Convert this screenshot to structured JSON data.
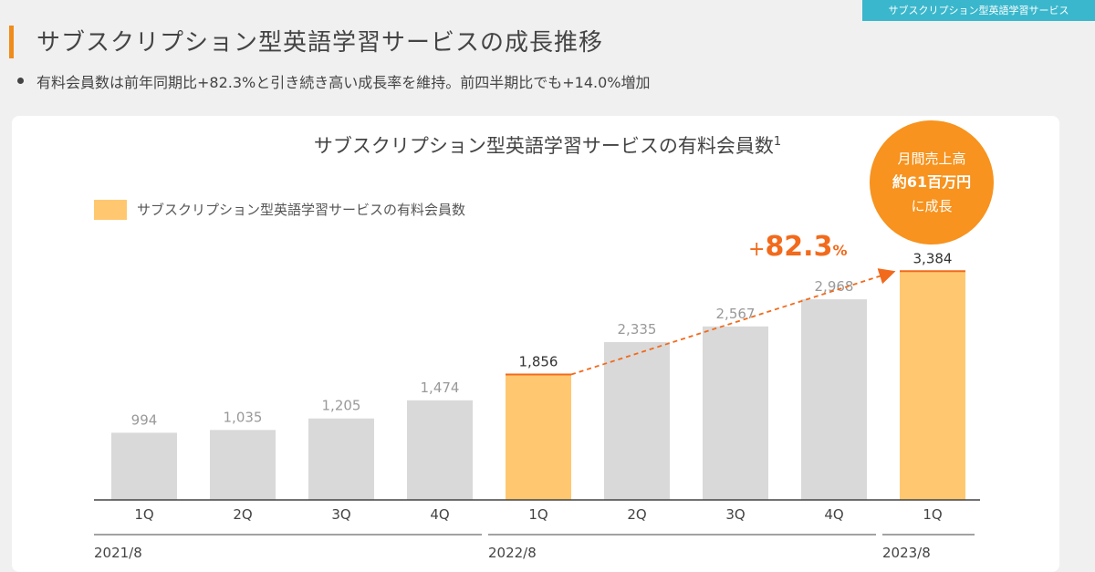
{
  "header": {
    "section_tag": "サブスクリプション型英語学習サービス",
    "page_title": "サブスクリプション型英語学習サービスの成長推移",
    "bullet": "有料会員数は前年同期比+82.3%と引き続き高い成長率を維持。前四半期比でも+14.0%増加"
  },
  "callout": {
    "line1": "月間売上高",
    "line2": "約61百万円",
    "line3": "に成長"
  },
  "growth": {
    "plus": "+",
    "value": "82.3",
    "unit": "%"
  },
  "colors": {
    "gray_bar": "#d9d9d9",
    "highlight_bar": "#ffc870",
    "accent": "#f26a1b",
    "bubble": "#f7931e",
    "tag": "#3ab7cc"
  },
  "chart_data": {
    "type": "bar",
    "title": "サブスクリプション型英語学習サービスの有料会員数",
    "title_superscript": "1",
    "legend": "サブスクリプション型英語学習サービスの有料会員数",
    "categories": [
      "1Q",
      "2Q",
      "3Q",
      "4Q",
      "1Q",
      "2Q",
      "3Q",
      "4Q",
      "1Q"
    ],
    "values": [
      994,
      1035,
      1205,
      1474,
      1856,
      2335,
      2567,
      2968,
      3384
    ],
    "value_labels": [
      "994",
      "1,035",
      "1,205",
      "1,474",
      "1,856",
      "2,335",
      "2,567",
      "2,968",
      "3,384"
    ],
    "highlighted": [
      4,
      8
    ],
    "period_groups": [
      {
        "label": "2021/8",
        "start": 0,
        "end": 3
      },
      {
        "label": "2022/8",
        "start": 4,
        "end": 7
      },
      {
        "label": "2023/8",
        "start": 8,
        "end": 8
      }
    ],
    "ylim": [
      0,
      3550
    ],
    "grid": false
  }
}
